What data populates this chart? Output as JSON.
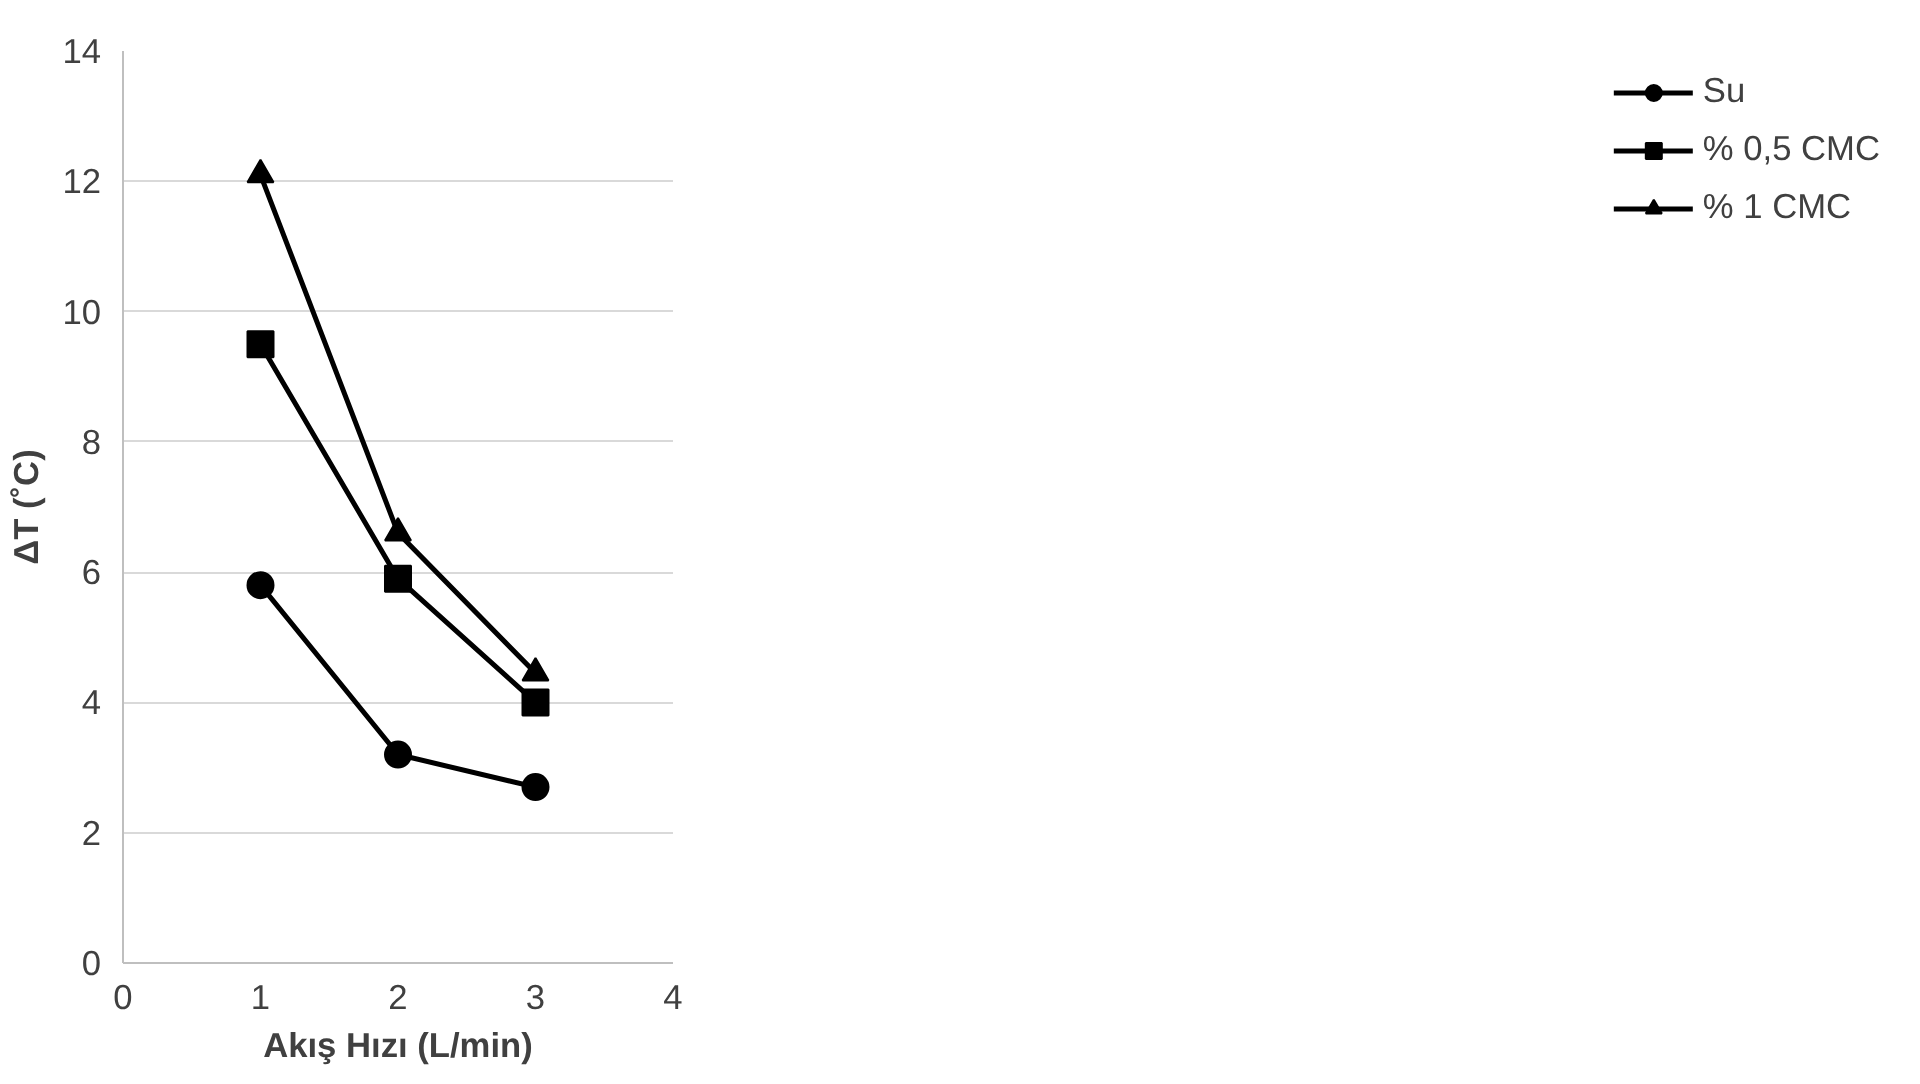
{
  "chart_data": {
    "type": "line",
    "xlabel": "Akış Hızı (L/min)",
    "ylabel": "ΔT (˚C)",
    "x": [
      1,
      2,
      3
    ],
    "series": [
      {
        "name": "Su",
        "color": "#000000",
        "values": [
          5.8,
          3.2,
          2.7
        ],
        "marker": "circle"
      },
      {
        "name": "% 0,5 CMC",
        "color": "#000000",
        "values": [
          9.5,
          5.9,
          4.0
        ],
        "marker": "square"
      },
      {
        "name": "% 1 CMC",
        "color": "#000000",
        "values": [
          12.1,
          6.6,
          4.45
        ],
        "marker": "triangle"
      }
    ],
    "xlim": [
      0,
      4
    ],
    "xticks": [
      0,
      1,
      2,
      3,
      4
    ],
    "ylim": [
      0,
      14
    ],
    "yticks": [
      0,
      2,
      4,
      6,
      8,
      10,
      12,
      14
    ],
    "grid": "y",
    "legend": "right",
    "line_style": "solid"
  }
}
